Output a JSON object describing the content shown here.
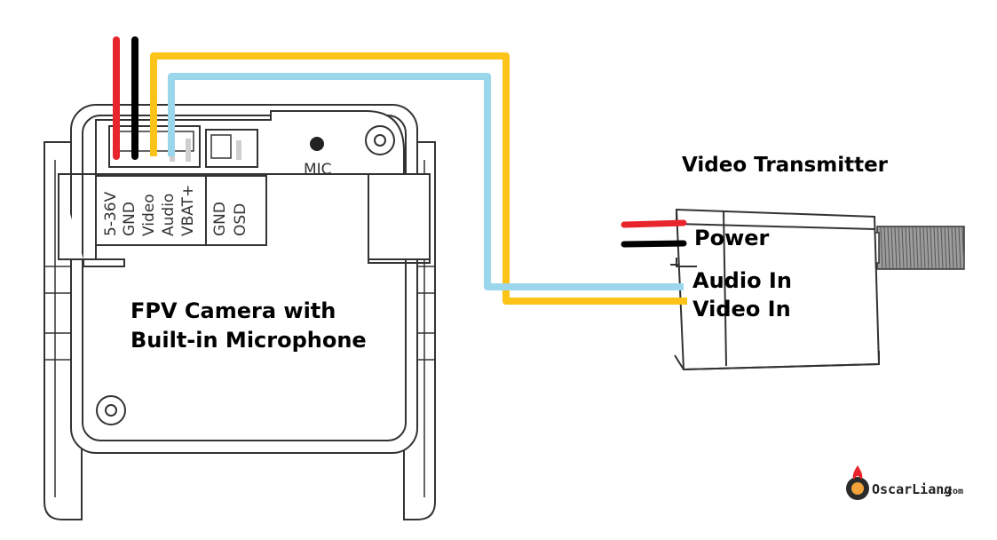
{
  "camera": {
    "title_line1": "FPV Camera with",
    "title_line2": "Built-in Microphone",
    "mic_label": "MIC",
    "pins": [
      "5-36V",
      "GND",
      "Video",
      "Audio",
      "VBAT+",
      "GND",
      "OSD"
    ]
  },
  "vtx": {
    "title": "Video Transmitter",
    "power_label": "Power",
    "audio_in_label": "Audio In",
    "video_in_label": "Video In"
  },
  "wires": {
    "power_color": "#e8242c",
    "ground_color": "#000000",
    "video_color": "#fcc419",
    "audio_color": "#9ad6ec"
  },
  "logo": {
    "name": "OscarLiang",
    "domain": ".com"
  }
}
